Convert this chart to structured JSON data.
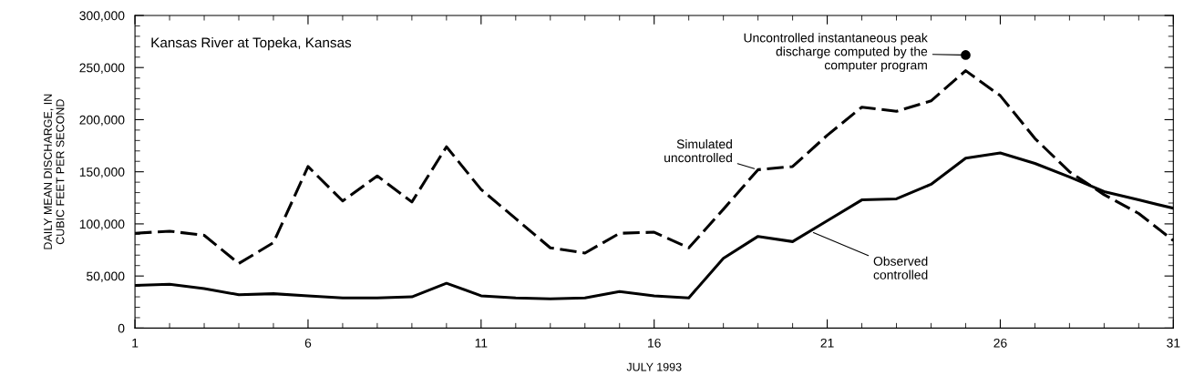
{
  "chart_data": {
    "type": "line",
    "xlabel": "JULY 1993",
    "ylabel": "DAILY MEAN DISCHARGE, IN\nCUBIC FEET PER SECOND",
    "x": [
      1,
      2,
      3,
      4,
      5,
      6,
      7,
      8,
      9,
      10,
      11,
      12,
      13,
      14,
      15,
      16,
      17,
      18,
      19,
      20,
      21,
      22,
      23,
      24,
      25,
      26,
      27,
      28,
      29,
      30,
      31
    ],
    "series": [
      {
        "color": "#000000",
        "line_style": "dashed",
        "values": [
          91000,
          93000,
          89000,
          62000,
          82000,
          155000,
          122000,
          146000,
          121000,
          174000,
          133000,
          105000,
          77000,
          72000,
          91000,
          92000,
          77000,
          114000,
          152000,
          155000,
          185000,
          212000,
          208000,
          218000,
          247000,
          223000,
          182000,
          150000,
          128000,
          110000,
          84000
        ]
      },
      {
        "color": "#000000",
        "line_style": "solid",
        "values": [
          41000,
          42000,
          38000,
          32000,
          33000,
          31000,
          29000,
          29000,
          30000,
          43000,
          31000,
          29000,
          28000,
          29000,
          35000,
          31000,
          29000,
          67000,
          88000,
          83000,
          103000,
          123000,
          124000,
          138000,
          163000,
          168000,
          158000,
          145000,
          131000,
          123000,
          115000
        ]
      },
      {
        "type": "scatter",
        "color": "#000000",
        "marker": "circle",
        "x": [
          25
        ],
        "values": [
          262000
        ]
      }
    ],
    "xlim": [
      1,
      31
    ],
    "xticks": [
      1,
      6,
      11,
      16,
      21,
      26,
      31
    ],
    "ylim": [
      0,
      300000
    ],
    "yticks": [
      {
        "value": 0,
        "label": "0"
      },
      {
        "value": 50000,
        "label": "50,000"
      },
      {
        "value": 100000,
        "label": "100,000"
      },
      {
        "value": 150000,
        "label": "150,000"
      },
      {
        "value": 200000,
        "label": "200,000"
      },
      {
        "value": 250000,
        "label": "250,000"
      },
      {
        "value": 300000,
        "label": "300,000"
      }
    ],
    "grid": false,
    "annotations": [
      "Kansas River at Topeka, Kansas",
      {
        "text": "Simulated\nuncontrolled",
        "x": 19,
        "y": 152000
      },
      {
        "text": "Observed\ncontrolled",
        "x": 20.5,
        "y": 93000
      },
      {
        "text": "Uncontrolled instantaneous peak\ndischarge computed by the\ncomputer program",
        "x": 25,
        "y": 262000
      }
    ]
  }
}
